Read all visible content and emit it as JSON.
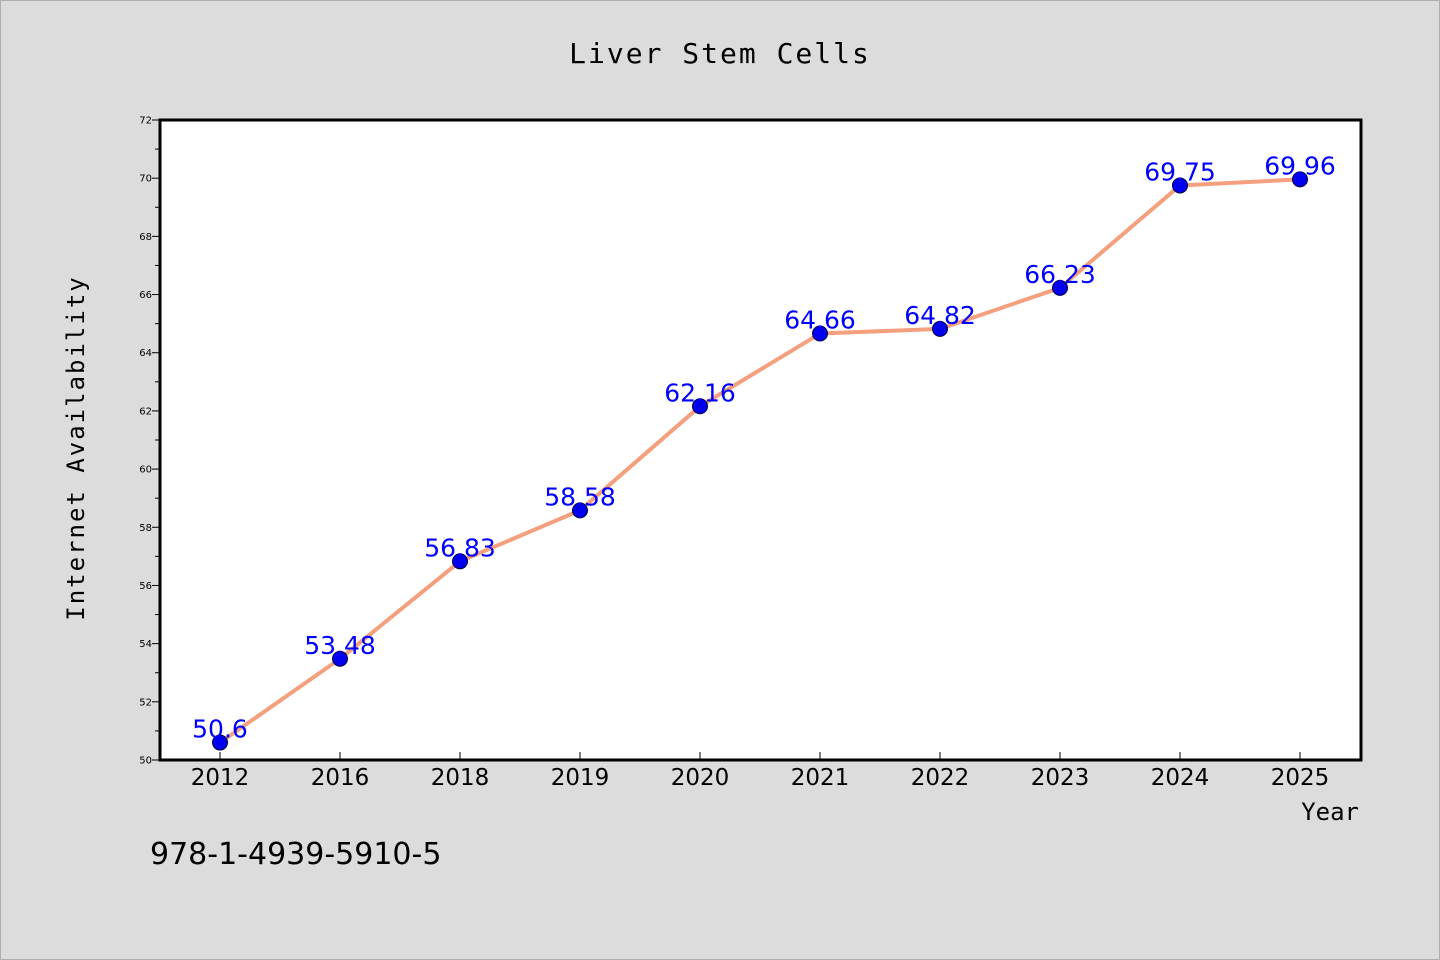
{
  "chart_data": {
    "type": "line",
    "title": "Liver Stem Cells",
    "xlabel": "Year",
    "ylabel": "Internet Availability",
    "categories": [
      "2012",
      "2016",
      "2018",
      "2019",
      "2020",
      "2021",
      "2022",
      "2023",
      "2024",
      "2025"
    ],
    "series": [
      {
        "values": [
          50.6,
          53.48,
          56.83,
          58.58,
          62.16,
          64.66,
          64.82,
          66.23,
          69.75,
          69.96
        ],
        "data_labels": [
          "50.6",
          "53.48",
          "56.83",
          "58.58",
          "62.16",
          "64.66",
          "64.82",
          "66.23",
          "69.75",
          "69.96"
        ]
      }
    ],
    "ylim": [
      50,
      72
    ],
    "yticks": [
      "50",
      "52",
      "54",
      "56",
      "58",
      "60",
      "62",
      "64",
      "66",
      "68",
      "70",
      "72"
    ],
    "grid": false,
    "line_color": "#f4a07e",
    "marker_color": "#0000ee",
    "label_color": "#0000ff",
    "background_color": "#dcdcdc",
    "plot_background_color": "#ffffff"
  },
  "footer": {
    "isbn": "978-1-4939-5910-5"
  }
}
